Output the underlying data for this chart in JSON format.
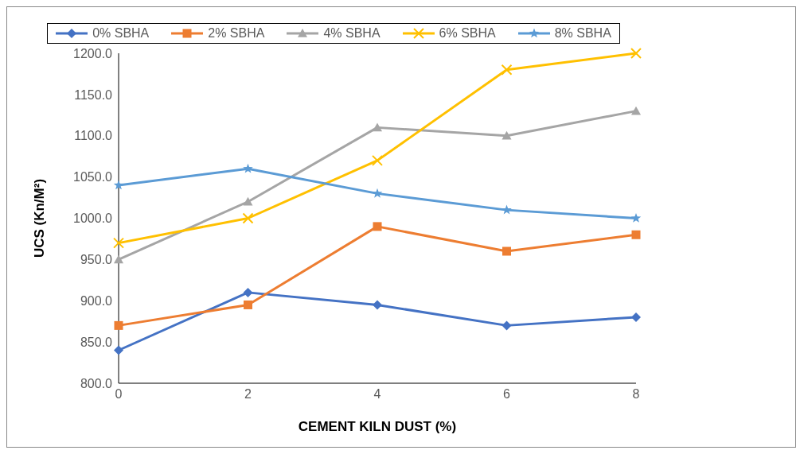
{
  "chart_data": {
    "type": "line",
    "xlabel": "CEMENT KILN DUST (%)",
    "ylabel": "UCS (Kn/M²)",
    "x": [
      0,
      2,
      4,
      6,
      8
    ],
    "xlim": [
      0,
      8
    ],
    "xticks": [
      0,
      2,
      4,
      6,
      8
    ],
    "ylim": [
      800,
      1200
    ],
    "yticks": [
      {
        "value": 800,
        "label": "800.0"
      },
      {
        "value": 850,
        "label": "850.0"
      },
      {
        "value": 900,
        "label": "900.0"
      },
      {
        "value": 950,
        "label": "950.0"
      },
      {
        "value": 1000,
        "label": "1000.0"
      },
      {
        "value": 1050,
        "label": "1050.0"
      },
      {
        "value": 1100,
        "label": "1100.0"
      },
      {
        "value": 1150,
        "label": "1150.0"
      },
      {
        "value": 1200,
        "label": "1200.0"
      }
    ],
    "grid": false,
    "legend": "top",
    "line_style": "solid",
    "series": [
      {
        "name": "0% SBHA",
        "color": "#4472c4",
        "marker": "diamond",
        "values": [
          840,
          910,
          895,
          870,
          880
        ]
      },
      {
        "name": "2% SBHA",
        "color": "#ed7d31",
        "marker": "square",
        "values": [
          870,
          895,
          990,
          960,
          980
        ]
      },
      {
        "name": "4% SBHA",
        "color": "#a5a5a5",
        "marker": "triangle",
        "values": [
          950,
          1020,
          1110,
          1100,
          1130
        ]
      },
      {
        "name": "6% SBHA",
        "color": "#ffc000",
        "marker": "cross",
        "values": [
          970,
          1000,
          1070,
          1180,
          1200
        ]
      },
      {
        "name": "8% SBHA",
        "color": "#5b9bd5",
        "marker": "star",
        "values": [
          1040,
          1060,
          1030,
          1010,
          1000
        ]
      }
    ]
  }
}
